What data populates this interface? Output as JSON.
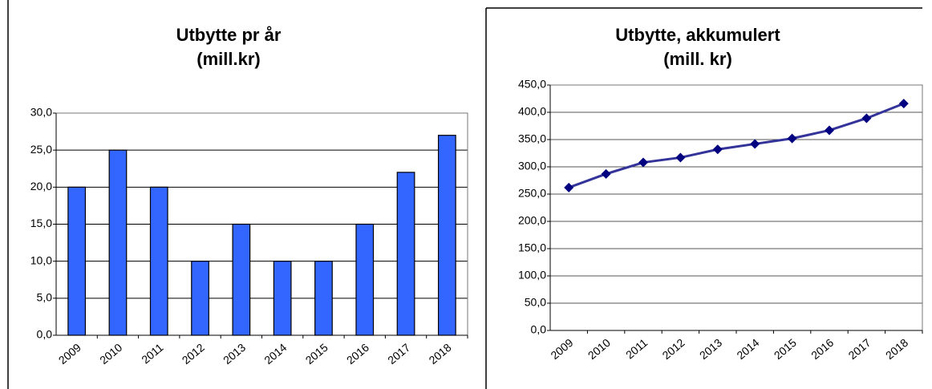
{
  "chart_data": [
    {
      "type": "bar",
      "title": "Utbytte pr år",
      "subtitle": "(mill.kr)",
      "categories": [
        "2009",
        "2010",
        "2011",
        "2012",
        "2013",
        "2014",
        "2015",
        "2016",
        "2017",
        "2018"
      ],
      "values": [
        20,
        25,
        20,
        10,
        15,
        10,
        10,
        15,
        22,
        27
      ],
      "color": "#3366ff",
      "ylim": [
        0,
        30
      ],
      "yticks": [
        {
          "value": 0,
          "label": "0,0"
        },
        {
          "value": 5,
          "label": "5,0"
        },
        {
          "value": 10,
          "label": "10,0"
        },
        {
          "value": 15,
          "label": "15,0"
        },
        {
          "value": 20,
          "label": "20,0"
        },
        {
          "value": 25,
          "label": "25,0"
        },
        {
          "value": 30,
          "label": "30,0"
        }
      ],
      "grid": true
    },
    {
      "type": "line",
      "title": "Utbytte, akkumulert",
      "subtitle": "(mill. kr)",
      "categories": [
        "2009",
        "2010",
        "2011",
        "2012",
        "2013",
        "2014",
        "2015",
        "2016",
        "2017",
        "2018"
      ],
      "values": [
        262,
        287,
        308,
        317,
        332,
        342,
        352,
        367,
        389,
        416
      ],
      "color": "#333399",
      "marker_color": "#000080",
      "ylim": [
        0,
        450
      ],
      "yticks": [
        {
          "value": 0,
          "label": "0,0"
        },
        {
          "value": 50,
          "label": "50,0"
        },
        {
          "value": 100,
          "label": "100,0"
        },
        {
          "value": 150,
          "label": "150,0"
        },
        {
          "value": 200,
          "label": "200,0"
        },
        {
          "value": 250,
          "label": "250,0"
        },
        {
          "value": 300,
          "label": "300,0"
        },
        {
          "value": 350,
          "label": "350,0"
        },
        {
          "value": 400,
          "label": "400,0"
        },
        {
          "value": 450,
          "label": "450,0"
        }
      ],
      "grid": true
    }
  ]
}
